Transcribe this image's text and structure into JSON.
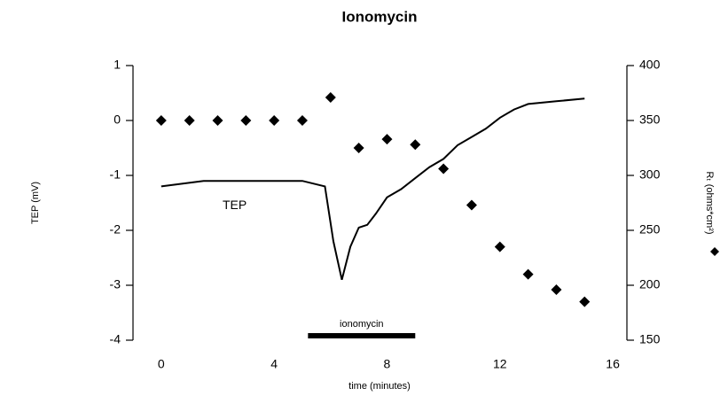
{
  "chart_data": {
    "type": "line",
    "title": "Ionomycin",
    "x_label": "time (minutes)",
    "y_label": "TEP (mV)",
    "y2_label": "Rₜ (ohms*cm²)",
    "xlim": [
      -1,
      16.5
    ],
    "xticks": [
      0,
      4,
      8,
      12,
      16
    ],
    "ylim": [
      -4,
      1
    ],
    "yticks": [
      -4,
      -3,
      -2,
      -1,
      0,
      1
    ],
    "y2lim": [
      150,
      400
    ],
    "y2ticks": [
      150,
      200,
      250,
      300,
      350,
      400
    ],
    "series": [
      {
        "name": "TEP",
        "color": "#000000",
        "x": [
          0,
          1.5,
          5,
          5.8,
          6.1,
          6.4,
          6.7,
          7,
          7.3,
          7.6,
          8,
          8.5,
          9,
          9.5,
          10,
          10.5,
          11,
          11.5,
          12,
          12.5,
          13,
          14,
          15
        ],
        "values": [
          -1.2,
          -1.1,
          -1.1,
          -1.2,
          -2.2,
          -2.9,
          -2.3,
          -1.95,
          -1.9,
          -1.7,
          -1.4,
          -1.25,
          -1.05,
          -0.85,
          -0.7,
          -0.45,
          -0.3,
          -0.15,
          0.05,
          0.2,
          0.3,
          0.35,
          0.4
        ]
      },
      {
        "color": "#000000",
        "axis": "y2",
        "marker": "diamond",
        "x": [
          0,
          1,
          2,
          3,
          4,
          5,
          6,
          7,
          8,
          9,
          10,
          11,
          12,
          13,
          14,
          15
        ],
        "values": [
          350,
          350,
          350,
          350,
          350,
          350,
          371,
          325,
          333,
          328,
          306,
          273,
          235,
          210,
          196,
          185
        ]
      }
    ],
    "treatment_bar": {
      "label": "ionomycin",
      "start": 5.2,
      "end": 9.0
    }
  }
}
